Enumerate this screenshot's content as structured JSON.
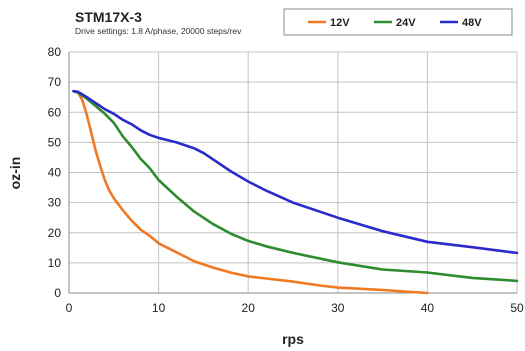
{
  "chart_data": {
    "type": "line",
    "title": "STM17X-3",
    "subtitle": "Drive settings: 1.8 A/phase, 20000 steps/rev",
    "xlabel": "rps",
    "ylabel": "oz-in",
    "xlim": [
      0,
      50
    ],
    "ylim": [
      0,
      80
    ],
    "x_ticks": [
      "0",
      "10",
      "20",
      "30",
      "40",
      "50"
    ],
    "y_ticks": [
      "0",
      "10",
      "20",
      "30",
      "40",
      "50",
      "60",
      "70",
      "80"
    ],
    "grid": true,
    "legend_position": "top-right",
    "series": [
      {
        "name": "12V",
        "color": "#f07a22",
        "x": [
          0.5,
          1,
          1.5,
          2,
          2.5,
          3,
          3.5,
          4,
          4.5,
          5,
          6,
          7,
          8,
          9,
          10,
          12,
          14,
          16,
          18,
          20,
          22,
          25,
          28,
          30,
          35,
          40
        ],
        "y": [
          67,
          66.5,
          64,
          59,
          53,
          47,
          42,
          37.5,
          34,
          31.5,
          27.5,
          24,
          21,
          19,
          16.5,
          13.5,
          10.5,
          8.5,
          6.8,
          5.5,
          4.8,
          3.8,
          2.5,
          1.8,
          1,
          0
        ]
      },
      {
        "name": "24V",
        "color": "#2e8b2e",
        "x": [
          0.5,
          1,
          2,
          3,
          4,
          5,
          6,
          7,
          8,
          9,
          10,
          12,
          14,
          16,
          18,
          20,
          22,
          25,
          30,
          35,
          40,
          45,
          50
        ],
        "y": [
          67,
          66.5,
          64.5,
          62,
          59.5,
          56.5,
          52,
          48.5,
          44.5,
          41.5,
          37.5,
          32,
          27,
          23,
          19.8,
          17.3,
          15.5,
          13.3,
          10.2,
          7.8,
          6.8,
          5,
          4
        ]
      },
      {
        "name": "48V",
        "color": "#2b2bcc",
        "x": [
          0.5,
          1,
          2,
          3,
          4,
          5,
          6,
          7,
          8,
          9,
          10,
          12,
          14,
          15,
          16,
          18,
          20,
          22,
          25,
          30,
          35,
          40,
          45,
          50
        ],
        "y": [
          67,
          66.8,
          65,
          63,
          61,
          59.5,
          57.5,
          56,
          54,
          52.5,
          51.5,
          50,
          48,
          46.5,
          44.5,
          40.5,
          37,
          34,
          30,
          25,
          20.5,
          17,
          15.2,
          13.3
        ]
      }
    ]
  }
}
